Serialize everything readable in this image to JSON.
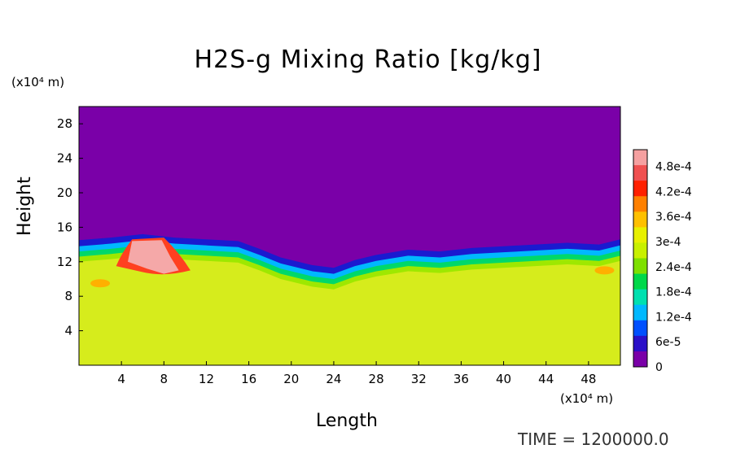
{
  "chart_data": {
    "type": "heatmap",
    "title": "H2S-g Mixing Ratio [kg/kg]",
    "xlabel": "Length",
    "ylabel": "Height",
    "x_unit": "(x10⁴ m)",
    "y_unit": "(x10⁴ m)",
    "x_ticks": [
      "4",
      "8",
      "12",
      "16",
      "20",
      "24",
      "28",
      "32",
      "36",
      "40",
      "44",
      "48"
    ],
    "y_ticks": [
      "4",
      "8",
      "12",
      "16",
      "20",
      "24",
      "28"
    ],
    "xlim": [
      0,
      51
    ],
    "ylim": [
      0,
      30
    ],
    "colorbar": {
      "labels": [
        "0",
        "6e-5",
        "1.2e-4",
        "1.8e-4",
        "2.4e-4",
        "3e-4",
        "3.6e-4",
        "4.2e-4",
        "4.8e-4"
      ],
      "range": [
        0,
        0.00052
      ],
      "colors": [
        "#7a00a8",
        "#2a10c8",
        "#0050ff",
        "#00b8ff",
        "#00e0b0",
        "#00d84a",
        "#7ee000",
        "#c8f000",
        "#e8f000",
        "#ffc000",
        "#ff8000",
        "#ff2000",
        "#f05050",
        "#f5a0a0"
      ]
    },
    "time_label": "TIME = 1200000.0",
    "colors": {
      "upper": "#7a00a8",
      "lower": "#d6ec1c"
    }
  }
}
